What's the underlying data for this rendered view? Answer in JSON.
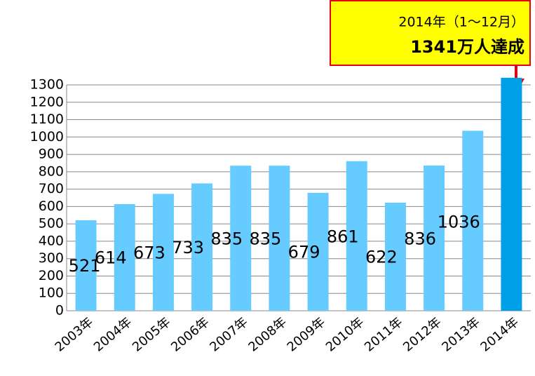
{
  "chart_data": {
    "type": "bar",
    "categories": [
      "2003年",
      "2004年",
      "2005年",
      "2006年",
      "2007年",
      "2008年",
      "2009年",
      "2010年",
      "2011年",
      "2012年",
      "2013年",
      "2014年"
    ],
    "values": [
      521,
      614,
      673,
      733,
      835,
      835,
      679,
      861,
      622,
      836,
      1036,
      1341
    ],
    "value_labels": [
      "521",
      "614",
      "673",
      "733",
      "835",
      "835",
      "679",
      "861",
      "622",
      "836",
      "1036",
      null
    ],
    "colors": [
      "#66ccff",
      "#66ccff",
      "#66ccff",
      "#66ccff",
      "#66ccff",
      "#66ccff",
      "#66ccff",
      "#66ccff",
      "#66ccff",
      "#66ccff",
      "#66ccff",
      "#00a0e9"
    ],
    "ylim": [
      0,
      1300
    ],
    "yticks": [
      0,
      100,
      200,
      300,
      400,
      500,
      600,
      700,
      800,
      900,
      1000,
      1100,
      1200,
      1300
    ],
    "grid": true,
    "annotation": {
      "line1": "2014年（1〜12月）",
      "line2": "1341万人達成"
    }
  }
}
